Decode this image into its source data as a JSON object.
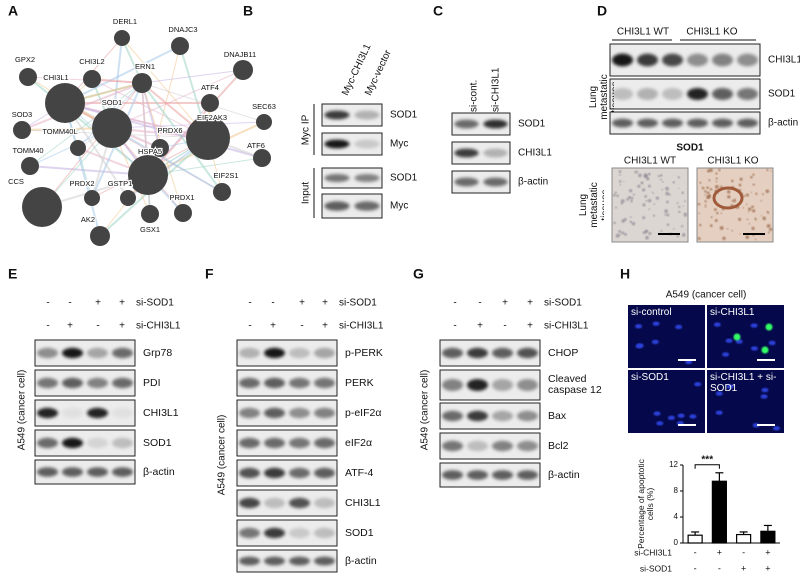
{
  "panels": {
    "A": {
      "label": "A",
      "nodes": [
        "DERL1",
        "DNAJC3",
        "GPX2",
        "CHI3L2",
        "ERN1",
        "DNAJB11",
        "CHI3L1",
        "ATF4",
        "SEC63",
        "SOD3",
        "SOD1",
        "TOMM40L",
        "PRDX6",
        "EIF2AK3",
        "TOMM40",
        "HSPA5",
        "ATF6",
        "CCS",
        "PRDX2",
        "GSTP1",
        "PRDX1",
        "EIF2S1",
        "AK2",
        "GSX1"
      ]
    },
    "B": {
      "label": "B",
      "columns": [
        "Myc-CHI3L1",
        "Myc-vector"
      ],
      "groups": [
        "Myc IP",
        "Input"
      ],
      "rows": [
        "SOD1",
        "Myc",
        "SOD1",
        "Myc"
      ]
    },
    "C": {
      "label": "C",
      "columns": [
        "si-cont.",
        "si-CHI3L1"
      ],
      "rows": [
        "SOD1",
        "CHI3L1",
        "β-actin"
      ]
    },
    "D": {
      "label": "D",
      "groups": [
        "CHI3L1 WT",
        "CHI3L1 KO"
      ],
      "side_label": "Lung metastatic tissues",
      "rows": [
        "CHI3L1",
        "SOD1",
        "β-actin"
      ],
      "ihc_title": "SOD1",
      "ihc_columns": [
        "CHI3L1 WT",
        "CHI3L1 KO"
      ],
      "ihc_side_label": "Lung metastatic tissues"
    },
    "E": {
      "label": "E",
      "cell_line": "A549 (cancer cell)",
      "conditions": [
        {
          "name": "si-SOD1",
          "signs": [
            "-",
            "-",
            "+",
            "+"
          ]
        },
        {
          "name": "si-CHI3L1",
          "signs": [
            "-",
            "+",
            "-",
            "+"
          ]
        }
      ],
      "rows": [
        "Grp78",
        "PDI",
        "CHI3L1",
        "SOD1",
        "β-actin"
      ]
    },
    "F": {
      "label": "F",
      "cell_line": "A549 (cancer cell)",
      "conditions": [
        {
          "name": "si-SOD1",
          "signs": [
            "-",
            "-",
            "+",
            "+"
          ]
        },
        {
          "name": "si-CHI3L1",
          "signs": [
            "-",
            "+",
            "-",
            "+"
          ]
        }
      ],
      "rows": [
        "p-PERK",
        "PERK",
        "p-eIF2α",
        "eIF2α",
        "ATF-4",
        "CHI3L1",
        "SOD1",
        "β-actin"
      ]
    },
    "G": {
      "label": "G",
      "cell_line": "A549 (cancer cell)",
      "conditions": [
        {
          "name": "si-SOD1",
          "signs": [
            "-",
            "-",
            "+",
            "+"
          ]
        },
        {
          "name": "si-CHI3L1",
          "signs": [
            "-",
            "+",
            "-",
            "+"
          ]
        }
      ],
      "rows": [
        "CHOP",
        "Cleaved caspase 12",
        "Bax",
        "Bcl2",
        "β-actin"
      ]
    },
    "H": {
      "label": "H",
      "title": "A549 (cancer cell)",
      "images": [
        "si-control",
        "si-CHI3L1",
        "si-SOD1",
        "si-CHI3L1 + si-SOD1"
      ]
    }
  },
  "chart_data": {
    "type": "bar",
    "y_label": "Percentage of apoptotic cells (%)",
    "categories": [
      null,
      null,
      null,
      null
    ],
    "values": [
      1.2,
      9.5,
      1.3,
      1.8
    ],
    "errors": [
      0.5,
      1.3,
      0.4,
      0.9
    ],
    "colors": [
      "#ffffff",
      "#000000",
      "#ffffff",
      "#000000"
    ],
    "ylim": [
      0,
      12
    ],
    "yticks": [
      0,
      4,
      8,
      12
    ],
    "annotation": "***",
    "conditions": [
      {
        "name": "si-CHI3L1",
        "signs": [
          "-",
          "+",
          "-",
          "+"
        ]
      },
      {
        "name": "si-SOD1",
        "signs": [
          "-",
          "-",
          "+",
          "+"
        ]
      }
    ]
  }
}
